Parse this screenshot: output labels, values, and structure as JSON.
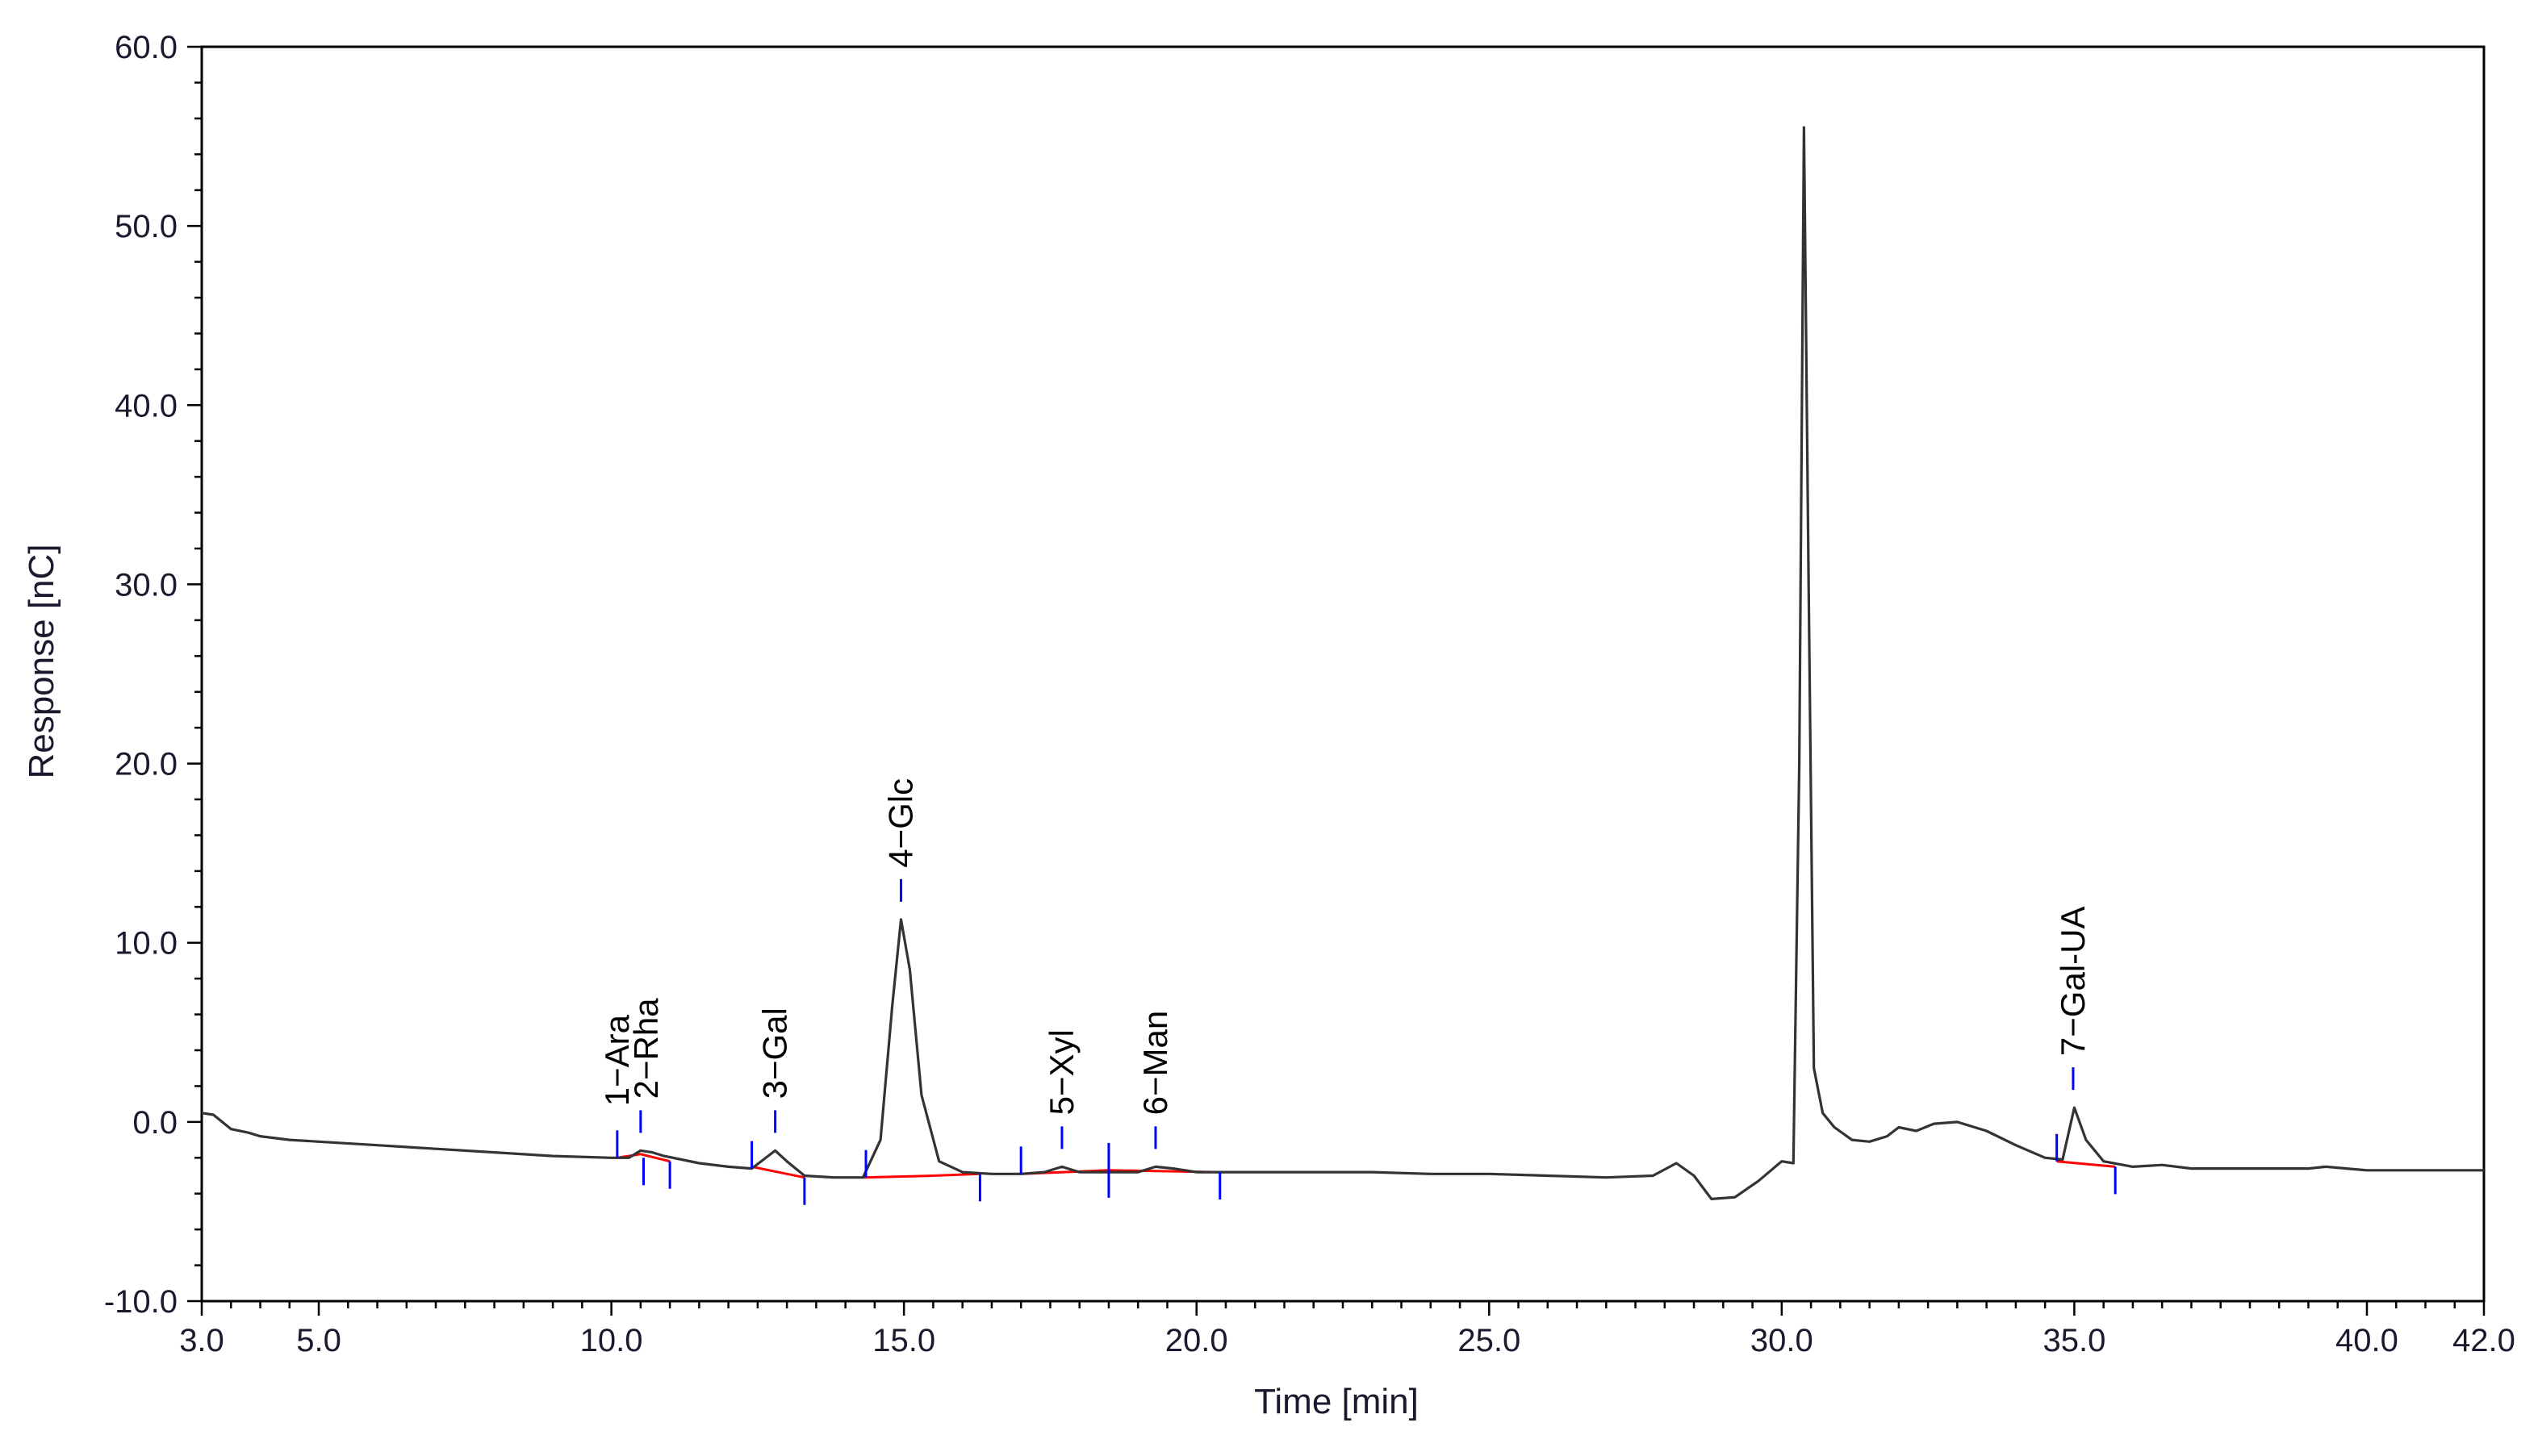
{
  "chart_data": {
    "type": "line",
    "title": "",
    "xlabel": "Time [min]",
    "ylabel": "Response [nC]",
    "xlim": [
      3.0,
      42.0
    ],
    "ylim": [
      -10.0,
      60.0
    ],
    "x_tick_labels": [
      {
        "value": 3.0,
        "label": "3.0"
      },
      {
        "value": 5.0,
        "label": "5.0"
      },
      {
        "value": 10.0,
        "label": "10.0"
      },
      {
        "value": 15.0,
        "label": "15.0"
      },
      {
        "value": 20.0,
        "label": "20.0"
      },
      {
        "value": 25.0,
        "label": "25.0"
      },
      {
        "value": 30.0,
        "label": "30.0"
      },
      {
        "value": 35.0,
        "label": "35.0"
      },
      {
        "value": 40.0,
        "label": "40.0"
      },
      {
        "value": 42.0,
        "label": "42.0"
      }
    ],
    "y_tick_labels": [
      {
        "value": -10.0,
        "label": "-10.0"
      },
      {
        "value": 0.0,
        "label": "0.0"
      },
      {
        "value": 10.0,
        "label": "10.0"
      },
      {
        "value": 20.0,
        "label": "20.0"
      },
      {
        "value": 30.0,
        "label": "30.0"
      },
      {
        "value": 40.0,
        "label": "40.0"
      },
      {
        "value": 50.0,
        "label": "50.0"
      },
      {
        "value": 60.0,
        "label": "60.0"
      }
    ],
    "grid": false,
    "colors": {
      "trace": "#333333",
      "baseline": "#ff0000",
      "markers": "#0000ff",
      "axis": "#000000",
      "text": "#1a1a2e"
    },
    "trace": {
      "x": [
        3.0,
        3.2,
        3.5,
        3.8,
        4.0,
        4.5,
        5.0,
        6.0,
        7.0,
        8.0,
        9.0,
        10.0,
        10.3,
        10.5,
        10.7,
        10.9,
        11.2,
        11.5,
        12.0,
        12.4,
        12.6,
        12.8,
        13.0,
        13.3,
        13.8,
        14.3,
        14.6,
        14.8,
        14.95,
        15.1,
        15.3,
        15.6,
        16.0,
        16.5,
        17.0,
        17.4,
        17.7,
        18.0,
        18.5,
        19.0,
        19.3,
        19.6,
        20.0,
        21.0,
        22.0,
        23.0,
        24.0,
        25.0,
        26.0,
        27.0,
        27.8,
        28.2,
        28.5,
        28.8,
        29.2,
        29.6,
        30.0,
        30.2,
        30.3,
        30.38,
        30.46,
        30.55,
        30.7,
        30.9,
        31.2,
        31.5,
        31.8,
        32.0,
        32.3,
        32.6,
        33.0,
        33.5,
        34.0,
        34.5,
        34.8,
        35.0,
        35.2,
        35.5,
        36.0,
        36.5,
        37.0,
        38.0,
        39.0,
        39.3,
        40.0,
        41.0,
        42.0
      ],
      "y": [
        0.5,
        0.4,
        -0.4,
        -0.6,
        -0.8,
        -1.0,
        -1.1,
        -1.3,
        -1.5,
        -1.7,
        -1.9,
        -2.0,
        -2.0,
        -1.6,
        -1.7,
        -1.9,
        -2.1,
        -2.3,
        -2.5,
        -2.6,
        -2.1,
        -1.6,
        -2.2,
        -3.0,
        -3.1,
        -3.1,
        -1.0,
        6.5,
        11.3,
        8.5,
        1.5,
        -2.2,
        -2.8,
        -2.9,
        -2.9,
        -2.8,
        -2.5,
        -2.8,
        -2.8,
        -2.8,
        -2.5,
        -2.6,
        -2.8,
        -2.8,
        -2.8,
        -2.8,
        -2.9,
        -2.9,
        -3.0,
        -3.1,
        -3.0,
        -2.3,
        -3.0,
        -4.3,
        -4.2,
        -3.3,
        -2.2,
        -2.3,
        20.0,
        55.5,
        30.0,
        3.0,
        0.5,
        -0.3,
        -1.0,
        -1.1,
        -0.8,
        -0.3,
        -0.5,
        -0.1,
        0.0,
        -0.5,
        -1.3,
        -2.0,
        -2.1,
        0.8,
        -1.0,
        -2.2,
        -2.5,
        -2.4,
        -2.6,
        -2.6,
        -2.6,
        -2.5,
        -2.7,
        -2.7,
        -2.7
      ]
    },
    "baselines": [
      {
        "x": [
          10.1,
          10.5,
          11.0
        ],
        "y": [
          -2.0,
          -1.8,
          -2.2
        ]
      },
      {
        "x": [
          12.4,
          13.0,
          13.3
        ],
        "y": [
          -2.5,
          -2.9,
          -3.1
        ]
      },
      {
        "x": [
          14.3,
          15.5,
          16.3
        ],
        "y": [
          -3.1,
          -3.0,
          -2.9
        ]
      },
      {
        "x": [
          17.0,
          18.5
        ],
        "y": [
          -2.9,
          -2.7
        ]
      },
      {
        "x": [
          18.5,
          20.4
        ],
        "y": [
          -2.7,
          -2.8
        ]
      },
      {
        "x": [
          34.7,
          35.7
        ],
        "y": [
          -2.2,
          -2.5
        ]
      }
    ],
    "markers": [
      {
        "x": 10.1,
        "y": -2.0,
        "dir": "up"
      },
      {
        "x": 10.55,
        "y": -2.0,
        "dir": "down"
      },
      {
        "x": 11.0,
        "y": -2.2,
        "dir": "down"
      },
      {
        "x": 12.4,
        "y": -2.6,
        "dir": "up"
      },
      {
        "x": 13.3,
        "y": -3.1,
        "dir": "down"
      },
      {
        "x": 14.35,
        "y": -3.1,
        "dir": "up"
      },
      {
        "x": 16.3,
        "y": -2.9,
        "dir": "down"
      },
      {
        "x": 17.0,
        "y": -2.9,
        "dir": "up"
      },
      {
        "x": 18.5,
        "y": -2.7,
        "dir": "both"
      },
      {
        "x": 20.4,
        "y": -2.8,
        "dir": "down"
      },
      {
        "x": 34.7,
        "y": -2.2,
        "dir": "up"
      },
      {
        "x": 35.7,
        "y": -2.5,
        "dir": "down"
      }
    ],
    "peak_ticks": [
      {
        "x": 10.5,
        "y": -1.6
      },
      {
        "x": 12.8,
        "y": -1.6
      },
      {
        "x": 14.95,
        "y": 11.3
      },
      {
        "x": 17.7,
        "y": -2.5
      },
      {
        "x": 19.3,
        "y": -2.5
      },
      {
        "x": 34.98,
        "y": 0.8
      }
    ],
    "annotations": [
      {
        "label": "1−Ara",
        "x": 10.1,
        "y": -2.0
      },
      {
        "label": "2−Rha",
        "x": 10.6,
        "y": -1.6
      },
      {
        "label": "3−Gal",
        "x": 12.8,
        "y": -1.6
      },
      {
        "label": "4−Glc",
        "x": 14.95,
        "y": 11.3
      },
      {
        "label": "5−Xyl",
        "x": 17.7,
        "y": -2.5
      },
      {
        "label": "6−Man",
        "x": 19.3,
        "y": -2.5
      },
      {
        "label": "7−Gal-UA",
        "x": 34.98,
        "y": 0.8
      }
    ]
  }
}
